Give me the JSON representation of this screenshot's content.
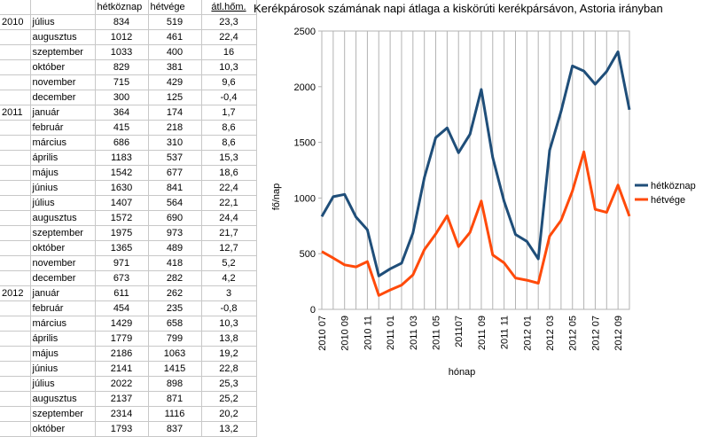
{
  "table": {
    "headers": [
      "",
      "",
      "hétköznap",
      "hétvége",
      "átl.hőm."
    ],
    "rows": [
      [
        "2010",
        "július",
        "834",
        "519",
        "23,3"
      ],
      [
        "",
        "augusztus",
        "1012",
        "461",
        "22,4"
      ],
      [
        "",
        "szeptember",
        "1033",
        "400",
        "16"
      ],
      [
        "",
        "október",
        "829",
        "381",
        "10,3"
      ],
      [
        "",
        "november",
        "715",
        "429",
        "9,6"
      ],
      [
        "",
        "december",
        "300",
        "125",
        "-0,4"
      ],
      [
        "2011",
        "január",
        "364",
        "174",
        "1,7"
      ],
      [
        "",
        "február",
        "415",
        "218",
        "8,6"
      ],
      [
        "",
        "március",
        "686",
        "310",
        "8,6"
      ],
      [
        "",
        "április",
        "1183",
        "537",
        "15,3"
      ],
      [
        "",
        "május",
        "1542",
        "677",
        "18,6"
      ],
      [
        "",
        "június",
        "1630",
        "841",
        "22,4"
      ],
      [
        "",
        "július",
        "1407",
        "564",
        "22,1"
      ],
      [
        "",
        "augusztus",
        "1572",
        "690",
        "24,4"
      ],
      [
        "",
        "szeptember",
        "1975",
        "973",
        "21,7"
      ],
      [
        "",
        "október",
        "1365",
        "489",
        "12,7"
      ],
      [
        "",
        "november",
        "971",
        "418",
        "5,2"
      ],
      [
        "",
        "december",
        "673",
        "282",
        "4,2"
      ],
      [
        "2012",
        "január",
        "611",
        "262",
        "3"
      ],
      [
        "",
        "február",
        "454",
        "235",
        "-0,8"
      ],
      [
        "",
        "március",
        "1429",
        "658",
        "10,3"
      ],
      [
        "",
        "április",
        "1779",
        "799",
        "13,8"
      ],
      [
        "",
        "május",
        "2186",
        "1063",
        "19,2"
      ],
      [
        "",
        "június",
        "2141",
        "1415",
        "22,8"
      ],
      [
        "",
        "július",
        "2022",
        "898",
        "25,3"
      ],
      [
        "",
        "augusztus",
        "2137",
        "871",
        "25,2"
      ],
      [
        "",
        "szeptember",
        "2314",
        "1116",
        "20,2"
      ],
      [
        "",
        "október",
        "1793",
        "837",
        "13,2"
      ]
    ]
  },
  "chart_data": {
    "type": "line",
    "title": "Kerékpárosok számának napi átlaga a kiskörúti kerékpársávon, Astoria irányban",
    "xlabel": "hónap",
    "ylabel": "fő/nap",
    "ylim": [
      0,
      2500
    ],
    "yticks": [
      0,
      500,
      1000,
      1500,
      2000,
      2500
    ],
    "grid": "vertical",
    "legend_position": "right",
    "x": [
      "2010 07",
      "2010 08",
      "2010 09",
      "2010 10",
      "2010 11",
      "2010 12",
      "2011 01",
      "2011 02",
      "2011 03",
      "2011 04",
      "2011 05",
      "2011 06",
      "2011 07",
      "2011 08",
      "2011 09",
      "2011 10",
      "2011 11",
      "2011 12",
      "2012 01",
      "2012 02",
      "2012 03",
      "2012 04",
      "2012 05",
      "2012 06",
      "2012 07",
      "2012 08",
      "2012 09",
      "2012 10"
    ],
    "x_tick_labels": [
      "2010 07",
      "2010 09",
      "2010 11",
      "2011 01",
      "2011 03",
      "2011 05",
      "201107",
      "2011 09",
      "2011 11",
      "2012 01",
      "2012 03",
      "2012 05",
      "2012 07",
      "2012 09"
    ],
    "series": [
      {
        "name": "hétköznap",
        "color": "#1f4e79",
        "values": [
          834,
          1012,
          1033,
          829,
          715,
          300,
          364,
          415,
          686,
          1183,
          1542,
          1630,
          1407,
          1572,
          1975,
          1365,
          971,
          673,
          611,
          454,
          1429,
          1779,
          2186,
          2141,
          2022,
          2137,
          2314,
          1793
        ]
      },
      {
        "name": "hétvége",
        "color": "#ff4a0a",
        "values": [
          519,
          461,
          400,
          381,
          429,
          125,
          174,
          218,
          310,
          537,
          677,
          841,
          564,
          690,
          973,
          489,
          418,
          282,
          262,
          235,
          658,
          799,
          1063,
          1415,
          898,
          871,
          1116,
          837
        ]
      }
    ]
  }
}
